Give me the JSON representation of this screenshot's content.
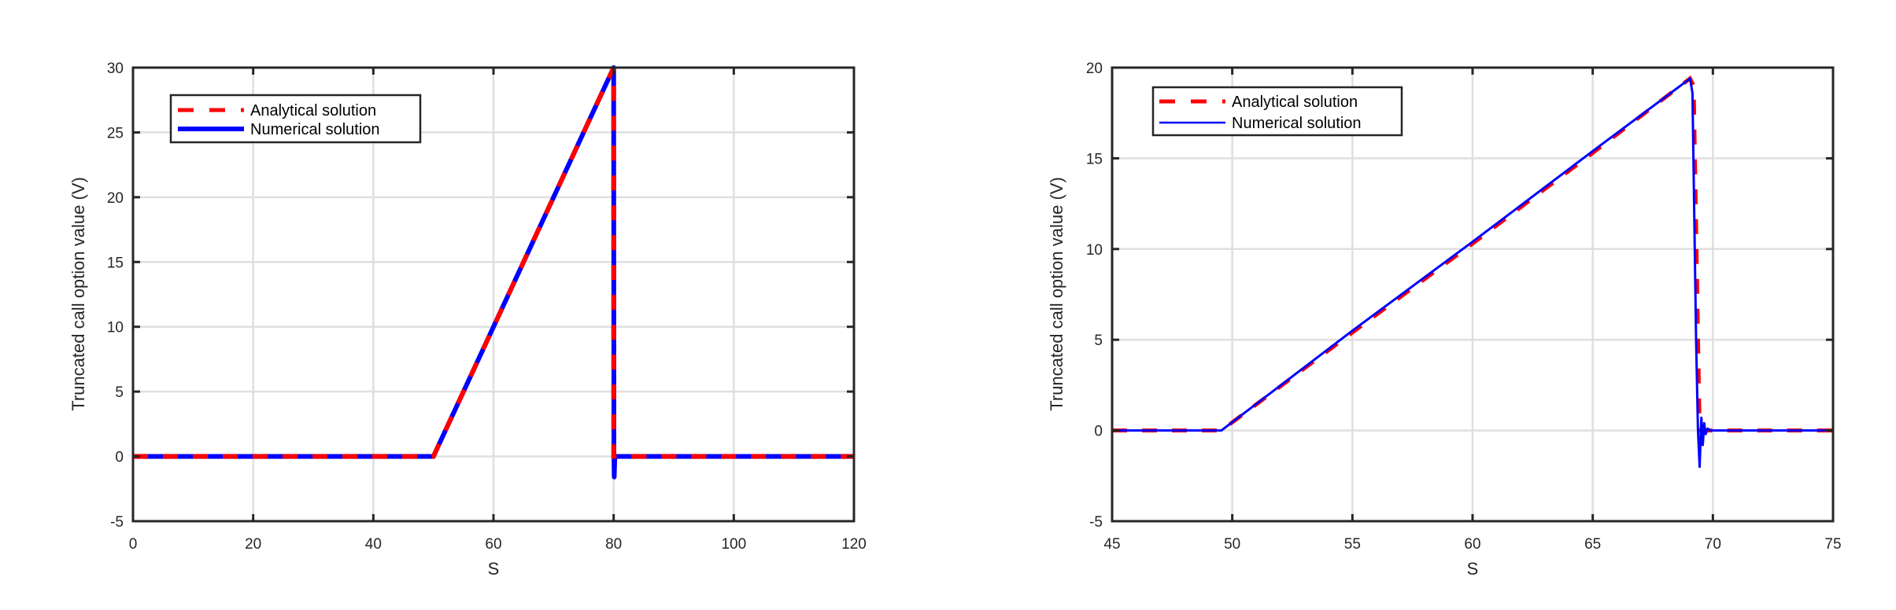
{
  "chart_data": [
    {
      "type": "line",
      "panel": "left",
      "title": "",
      "xlabel": "S",
      "ylabel": "Truncated call option value (V)",
      "xlim": [
        0,
        120
      ],
      "ylim": [
        -5,
        30
      ],
      "xticks": [
        0,
        20,
        40,
        60,
        80,
        100,
        120
      ],
      "yticks": [
        -5,
        0,
        5,
        10,
        15,
        20,
        25,
        30
      ],
      "grid": true,
      "legend_position": "upper left",
      "legend": [
        "Analytical solution",
        "Numerical solution"
      ],
      "series": [
        {
          "name": "Analytical solution",
          "style": "dashed",
          "color": "#ff0000",
          "x": [
            0,
            50,
            80,
            80,
            80.2,
            120
          ],
          "y": [
            0,
            0,
            30,
            0,
            0,
            0
          ]
        },
        {
          "name": "Numerical solution",
          "style": "solid",
          "color": "#0000ff",
          "x": [
            0,
            50,
            80,
            80.05,
            80.1,
            80.2,
            120
          ],
          "y": [
            0,
            0,
            30,
            0.5,
            -1.6,
            0,
            0
          ]
        }
      ]
    },
    {
      "type": "line",
      "panel": "right",
      "title": "",
      "xlabel": "S",
      "ylabel": "Truncated call option value (V)",
      "xlim": [
        45,
        75
      ],
      "ylim": [
        -5,
        20
      ],
      "xticks": [
        45,
        50,
        55,
        60,
        65,
        70,
        75
      ],
      "yticks": [
        -5,
        0,
        5,
        10,
        15,
        20
      ],
      "grid": true,
      "legend_position": "upper left",
      "legend": [
        "Analytical solution",
        "Numerical solution"
      ],
      "series": [
        {
          "name": "Analytical solution",
          "style": "dashed",
          "color": "#ff0000",
          "x": [
            45,
            49.55,
            55,
            60,
            65,
            69.05,
            69.2,
            69.45,
            75
          ],
          "y": [
            0,
            0,
            5.4,
            10.3,
            15.3,
            19.4,
            19.0,
            0,
            0
          ]
        },
        {
          "name": "Numerical solution",
          "style": "solid",
          "color": "#0000ff",
          "x": [
            45,
            49.55,
            55,
            60,
            65,
            68.95,
            69.05,
            69.15,
            69.3,
            69.38,
            69.45,
            69.52,
            69.58,
            69.64,
            69.7,
            69.78,
            69.9,
            75
          ],
          "y": [
            0,
            0,
            5.5,
            10.4,
            15.4,
            19.3,
            19.4,
            18.6,
            5.0,
            0,
            -2.0,
            0.7,
            -0.8,
            0.4,
            -0.2,
            0.1,
            0,
            0
          ]
        }
      ]
    }
  ],
  "panels": [
    {
      "xlabel": "S",
      "ylabel": "Truncated call option value (V)",
      "xtick_labels": [
        "0",
        "20",
        "40",
        "60",
        "80",
        "100",
        "120"
      ],
      "ytick_labels": [
        "-5",
        "0",
        "5",
        "10",
        "15",
        "20",
        "25",
        "30"
      ],
      "legend": {
        "analytical": "Analytical solution",
        "numerical": "Numerical solution"
      }
    },
    {
      "xlabel": "S",
      "ylabel": "Truncated call option value (V)",
      "xtick_labels": [
        "45",
        "50",
        "55",
        "60",
        "65",
        "70",
        "75"
      ],
      "ytick_labels": [
        "-5",
        "0",
        "5",
        "10",
        "15",
        "20"
      ],
      "legend": {
        "analytical": "Analytical solution",
        "numerical": "Numerical solution"
      }
    }
  ],
  "colors": {
    "analytical": "#ff0000",
    "numerical": "#0000ff",
    "axis": "#262626",
    "grid": "#dfdfdf"
  }
}
